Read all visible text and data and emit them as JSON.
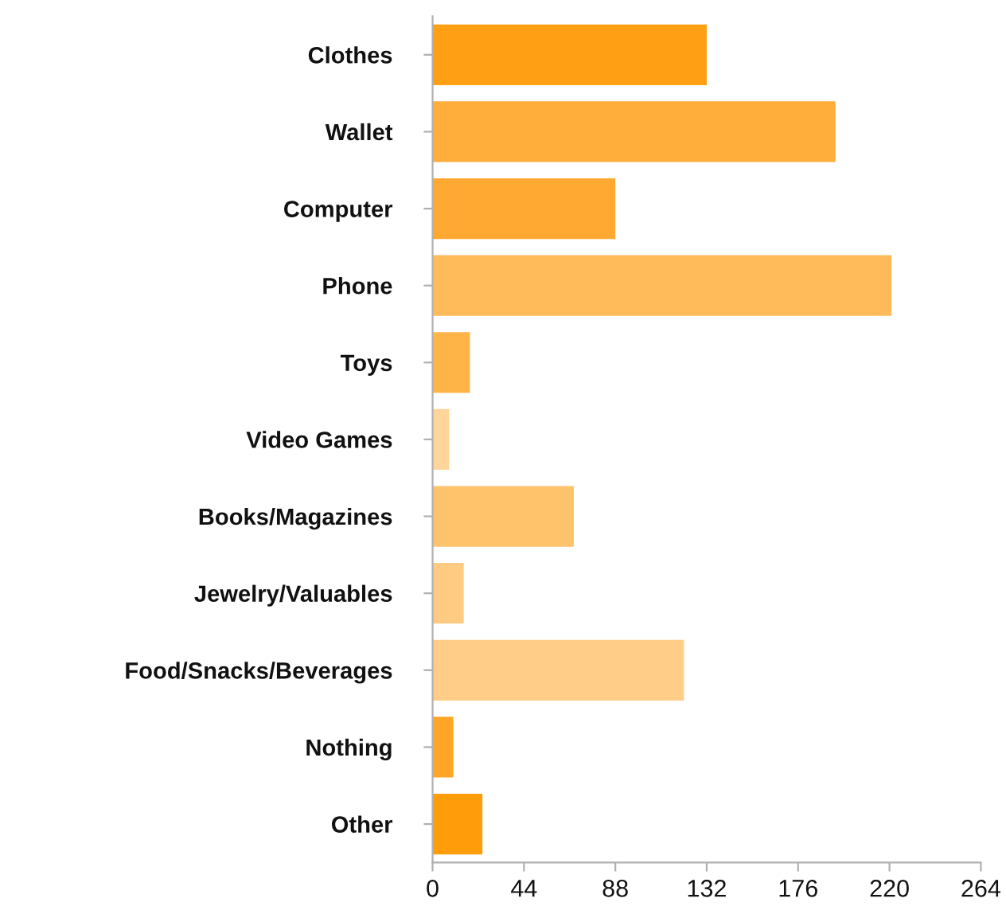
{
  "chart_data": {
    "type": "bar",
    "orientation": "horizontal",
    "categories": [
      "Clothes",
      "Wallet",
      "Computer",
      "Phone",
      "Toys",
      "Video Games",
      "Books/Magazines",
      "Jewelry/Valuables",
      "Food/Snacks/Beverages",
      "Nothing",
      "Other"
    ],
    "values": [
      132,
      194,
      88,
      221,
      18,
      8,
      68,
      15,
      121,
      10,
      24
    ],
    "colors": [
      "#ff9f14",
      "#ffae3c",
      "#ffa832",
      "#ffbb5a",
      "#ffb448",
      "#ffd59a",
      "#ffc36c",
      "#ffcb82",
      "#ffcd88",
      "#ffa628",
      "#ff9c0a"
    ],
    "xlim": [
      0,
      264
    ],
    "xticks": [
      0,
      44,
      88,
      132,
      176,
      220,
      264
    ],
    "grid": false,
    "legend": false
  }
}
